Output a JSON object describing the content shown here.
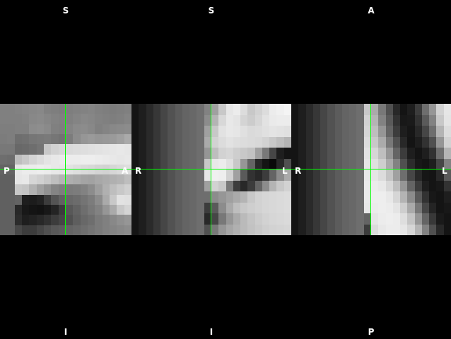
{
  "viewer": {
    "crosshair_color": "#00ff00",
    "background_color": "#000000",
    "label_color": "#ffffff"
  },
  "views": [
    {
      "id": "sagittal",
      "labels": {
        "top": "S",
        "bottom": "I",
        "left": "P",
        "right": "A"
      },
      "grid": [
        [
          128,
          128,
          130,
          132,
          134,
          136,
          128,
          126,
          124,
          126,
          128,
          130,
          132,
          128,
          126,
          124,
          126,
          128
        ],
        [
          128,
          128,
          128,
          130,
          136,
          138,
          134,
          130,
          128,
          128,
          132,
          136,
          134,
          130,
          128,
          126,
          128,
          132
        ],
        [
          126,
          126,
          128,
          128,
          140,
          142,
          138,
          128,
          126,
          132,
          138,
          140,
          136,
          128,
          132,
          136,
          138,
          140
        ],
        [
          124,
          126,
          110,
          112,
          118,
          120,
          122,
          118,
          114,
          124,
          140,
          150,
          154,
          150,
          152,
          154,
          160,
          170
        ],
        [
          120,
          120,
          104,
          106,
          110,
          116,
          200,
          210,
          215,
          218,
          220,
          222,
          224,
          226,
          228,
          230,
          232,
          230
        ],
        [
          110,
          108,
          190,
          200,
          212,
          220,
          228,
          232,
          234,
          236,
          236,
          238,
          238,
          236,
          234,
          232,
          230,
          232
        ],
        [
          100,
          100,
          232,
          236,
          236,
          238,
          236,
          232,
          230,
          226,
          222,
          218,
          216,
          212,
          210,
          214,
          218,
          222
        ],
        [
          96,
          96,
          230,
          232,
          214,
          208,
          200,
          190,
          180,
          174,
          170,
          164,
          162,
          168,
          172,
          176,
          180,
          190
        ],
        [
          96,
          96,
          200,
          196,
          178,
          160,
          146,
          132,
          126,
          122,
          124,
          130,
          140,
          158,
          176,
          190,
          200,
          208
        ],
        [
          96,
          96,
          100,
          30,
          28,
          34,
          60,
          84,
          98,
          104,
          108,
          116,
          124,
          140,
          170,
          200,
          226,
          224
        ],
        [
          96,
          96,
          40,
          24,
          20,
          18,
          24,
          36,
          60,
          88,
          98,
          110,
          120,
          130,
          150,
          170,
          200,
          212
        ],
        [
          96,
          96,
          44,
          30,
          34,
          40,
          48,
          60,
          70,
          80,
          94,
          104,
          110,
          122,
          128,
          136,
          144,
          150
        ],
        [
          96,
          96,
          72,
          60,
          60,
          70,
          80,
          88,
          92,
          100,
          104,
          110,
          116,
          122,
          128,
          132,
          136,
          140
        ]
      ],
      "crosshair": {
        "row_fraction": 0.5,
        "col_fraction": 0.5
      }
    },
    {
      "id": "coronal",
      "labels": {
        "top": "S",
        "bottom": "I",
        "left": "R",
        "right": "L"
      },
      "grid": [
        [
          20,
          30,
          42,
          55,
          70,
          82,
          92,
          100,
          104,
          110,
          130,
          160,
          200,
          230,
          236,
          220,
          200,
          210,
          220,
          236,
          240,
          244
        ],
        [
          20,
          30,
          42,
          55,
          70,
          82,
          92,
          100,
          104,
          110,
          140,
          180,
          216,
          232,
          228,
          212,
          204,
          214,
          226,
          234,
          236,
          236
        ],
        [
          20,
          30,
          42,
          55,
          70,
          82,
          92,
          100,
          104,
          110,
          160,
          200,
          226,
          232,
          230,
          224,
          218,
          220,
          224,
          228,
          226,
          224
        ],
        [
          20,
          30,
          42,
          55,
          70,
          82,
          92,
          100,
          104,
          110,
          170,
          210,
          220,
          226,
          222,
          220,
          218,
          216,
          210,
          200,
          190,
          180
        ],
        [
          20,
          30,
          42,
          55,
          70,
          82,
          92,
          100,
          104,
          110,
          150,
          190,
          210,
          214,
          206,
          200,
          194,
          160,
          120,
          70,
          30,
          20
        ],
        [
          20,
          30,
          42,
          55,
          70,
          82,
          92,
          100,
          104,
          110,
          200,
          232,
          236,
          224,
          200,
          150,
          100,
          40,
          20,
          10,
          40,
          80
        ],
        [
          20,
          30,
          42,
          55,
          70,
          82,
          92,
          100,
          104,
          110,
          230,
          240,
          238,
          210,
          160,
          90,
          50,
          40,
          60,
          100,
          140,
          170
        ],
        [
          20,
          30,
          42,
          55,
          70,
          82,
          92,
          100,
          104,
          110,
          160,
          210,
          200,
          120,
          60,
          40,
          60,
          100,
          140,
          180,
          200,
          210
        ],
        [
          20,
          30,
          42,
          55,
          70,
          82,
          92,
          100,
          104,
          110,
          110,
          140,
          150,
          160,
          170,
          180,
          200,
          210,
          214,
          216,
          218,
          220
        ],
        [
          20,
          30,
          42,
          55,
          70,
          82,
          92,
          100,
          104,
          110,
          60,
          90,
          140,
          170,
          190,
          200,
          206,
          210,
          214,
          216,
          218,
          220
        ],
        [
          20,
          30,
          42,
          55,
          70,
          82,
          92,
          100,
          104,
          110,
          40,
          70,
          120,
          150,
          170,
          186,
          196,
          204,
          210,
          214,
          216,
          218
        ],
        [
          20,
          30,
          42,
          55,
          70,
          82,
          92,
          100,
          104,
          110,
          80,
          120,
          150,
          166,
          176,
          186,
          194,
          200,
          206,
          210,
          212,
          214
        ]
      ],
      "crosshair": {
        "row_fraction": 0.5,
        "col_fraction": 0.48
      }
    },
    {
      "id": "axial",
      "labels": {
        "top": "A",
        "bottom": "P",
        "left": "R",
        "right": "L"
      },
      "grid": [
        [
          20,
          30,
          42,
          55,
          70,
          82,
          92,
          100,
          104,
          110,
          200,
          170,
          120,
          80,
          40,
          20,
          30,
          60,
          110,
          150,
          210,
          230
        ],
        [
          20,
          30,
          42,
          55,
          70,
          82,
          92,
          100,
          104,
          110,
          210,
          180,
          130,
          90,
          50,
          24,
          26,
          50,
          90,
          130,
          200,
          228
        ],
        [
          20,
          30,
          42,
          55,
          70,
          82,
          92,
          100,
          104,
          110,
          214,
          190,
          150,
          100,
          60,
          30,
          22,
          40,
          70,
          110,
          180,
          220
        ],
        [
          20,
          30,
          42,
          55,
          70,
          82,
          92,
          100,
          104,
          110,
          220,
          200,
          170,
          120,
          80,
          40,
          20,
          30,
          50,
          80,
          150,
          210
        ],
        [
          20,
          30,
          42,
          55,
          70,
          82,
          92,
          100,
          104,
          110,
          226,
          214,
          190,
          150,
          100,
          60,
          30,
          20,
          30,
          50,
          110,
          180
        ],
        [
          20,
          30,
          42,
          55,
          70,
          82,
          92,
          100,
          104,
          110,
          230,
          224,
          206,
          170,
          130,
          80,
          44,
          24,
          20,
          30,
          70,
          130
        ],
        [
          20,
          30,
          42,
          55,
          70,
          82,
          92,
          100,
          104,
          110,
          232,
          230,
          220,
          196,
          160,
          110,
          70,
          40,
          22,
          20,
          40,
          90
        ],
        [
          20,
          30,
          42,
          55,
          70,
          82,
          92,
          100,
          104,
          110,
          234,
          236,
          232,
          216,
          190,
          150,
          100,
          60,
          30,
          20,
          24,
          50
        ],
        [
          20,
          30,
          42,
          55,
          70,
          82,
          92,
          100,
          104,
          110,
          234,
          238,
          238,
          232,
          214,
          180,
          140,
          90,
          50,
          24,
          20,
          30
        ],
        [
          20,
          30,
          42,
          55,
          70,
          82,
          92,
          100,
          104,
          110,
          232,
          236,
          238,
          236,
          228,
          206,
          170,
          120,
          70,
          36,
          20,
          24
        ],
        [
          20,
          30,
          42,
          55,
          70,
          82,
          92,
          100,
          104,
          110,
          100,
          230,
          236,
          238,
          236,
          222,
          196,
          150,
          100,
          56,
          26,
          20
        ],
        [
          20,
          30,
          42,
          55,
          70,
          82,
          92,
          100,
          104,
          110,
          60,
          220,
          232,
          236,
          236,
          230,
          214,
          180,
          130,
          80,
          40,
          20
        ]
      ],
      "crosshair": {
        "row_fraction": 0.5,
        "col_fraction": 0.5
      }
    }
  ]
}
